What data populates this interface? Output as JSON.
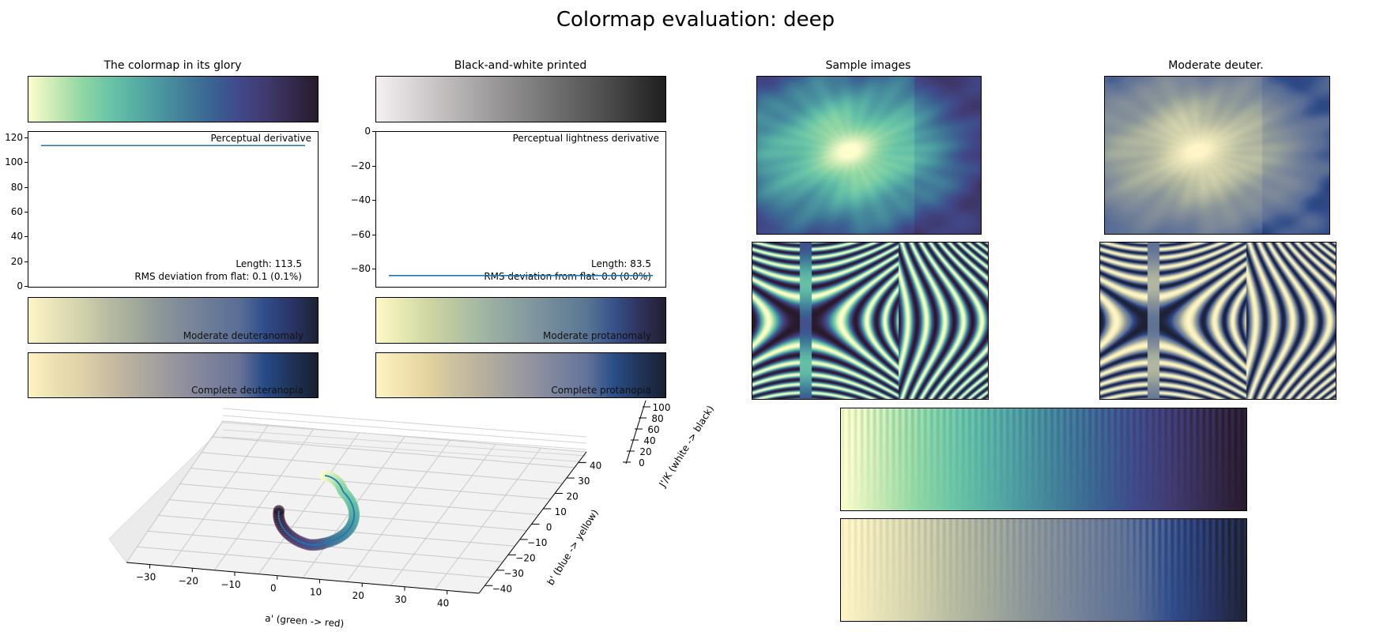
{
  "figure": {
    "title": "Colormap evaluation: deep"
  },
  "colormaps": {
    "deep": [
      "#fdfecc",
      "#c9e9b5",
      "#92d7a4",
      "#6cc6a6",
      "#58b0a4",
      "#4b96a0",
      "#417c98",
      "#3b6292",
      "#40498a",
      "#403a70",
      "#342b4d",
      "#281a2c"
    ],
    "grayscale": [
      "#f5f0f2",
      "#c9c5c6",
      "#9c9a9a",
      "#737373",
      "#4c4c4c",
      "#1e1e1e"
    ],
    "moderate_deuteranomaly": [
      "#fff5c6",
      "#e8e3b8",
      "#d2d2ac",
      "#b8bca2",
      "#a3ab9b",
      "#8c9799",
      "#7d8899",
      "#6a7b97",
      "#5b6e96",
      "#2f4d8a",
      "#2a3566",
      "#1d2233"
    ],
    "complete_deuteranopia": [
      "#fff3c2",
      "#ece0b2",
      "#dfd2a8",
      "#cbbea2",
      "#b5ae9e",
      "#a19e9e",
      "#8e8e9e",
      "#7c819a",
      "#6a7497",
      "#264a86",
      "#1f3358",
      "#172030"
    ],
    "moderate_protanomaly": [
      "#fff9c8",
      "#e6e8b2",
      "#cfd6a1",
      "#b8c6a2",
      "#a2b7a4",
      "#90a6a2",
      "#80969e",
      "#6c8699",
      "#5a7694",
      "#37538a",
      "#2f3360",
      "#211f2e"
    ],
    "complete_protanopia": [
      "#fff4c4",
      "#f2e3b0",
      "#e2d29e",
      "#ccc19e",
      "#b8b09e",
      "#a4a1a0",
      "#9093a0",
      "#79839d",
      "#63739a",
      "#2a4f88",
      "#21355c",
      "#192030"
    ]
  },
  "panels": {
    "glory": {
      "title": "The colormap in its glory"
    },
    "bw": {
      "title": "Black-and-white printed"
    },
    "samples": {
      "title": "Sample images"
    },
    "deuter": {
      "title": "Moderate deuter."
    }
  },
  "bars": {
    "mod_deut": "Moderate deuteranomaly",
    "comp_deut": "Complete deuteranopia",
    "mod_prot": "Moderate protanomaly",
    "comp_prot": "Complete protanopia"
  },
  "chart_data": [
    {
      "type": "line",
      "label": "Perceptual derivative",
      "values_constant": 114,
      "ylim": [
        0,
        125
      ],
      "yticks": [
        "0",
        "20",
        "40",
        "60",
        "80",
        "100",
        "120"
      ],
      "length_text": "Length: 113.5",
      "rms_text": "RMS deviation from flat: 0.1 (0.1%)",
      "line_color": "#1f77b4"
    },
    {
      "type": "line",
      "label": "Perceptual lightness derivative",
      "values_constant": -83.5,
      "ylim": [
        -90,
        0
      ],
      "yticks": [
        "0",
        "−20",
        "−40",
        "−60",
        "−80"
      ],
      "length_text": "Length: 83.5",
      "rms_text": "RMS deviation from flat: 0.0 (0.0%)",
      "line_color": "#1f77b4"
    },
    {
      "type": "scatter3d",
      "xlabel": "a' (green -> red)",
      "ylabel": "b' (blue -> yellow)",
      "zlabel": "J'/K (white -> black)",
      "xticks": [
        "−30",
        "−20",
        "−10",
        "0",
        "10",
        "20",
        "30",
        "40"
      ],
      "yticks": [
        "−40",
        "−30",
        "−20",
        "−10",
        "0",
        "10",
        "20",
        "30",
        "40"
      ],
      "zticks": [
        "0",
        "20",
        "40",
        "60",
        "80",
        "100"
      ]
    }
  ]
}
